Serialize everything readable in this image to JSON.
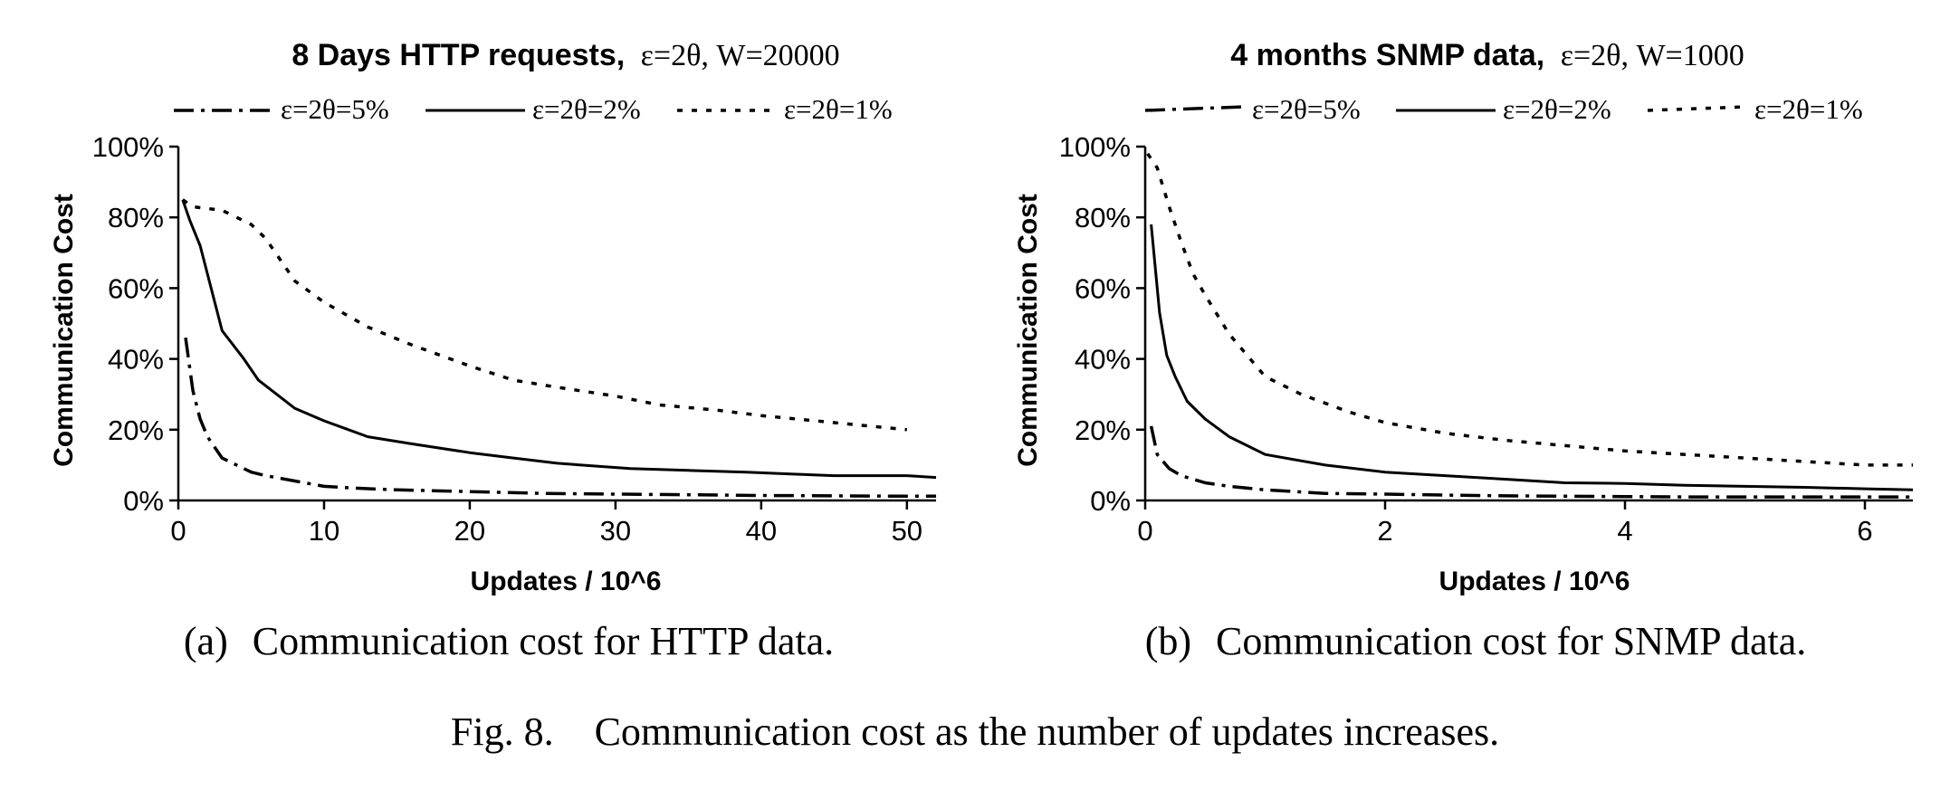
{
  "chart_data": [
    {
      "type": "line",
      "title": "8 Days HTTP requests,",
      "title_params": "ε=2θ, W=20000",
      "xlabel": "Updates / 10^6",
      "ylabel": "Communication Cost",
      "xlim": [
        0,
        52
      ],
      "ylim": [
        0,
        1
      ],
      "xticks": [
        0,
        10,
        20,
        30,
        40,
        50
      ],
      "xtick_labels": [
        "0",
        "10",
        "20",
        "30",
        "40",
        "50"
      ],
      "yticks": [
        0,
        0.2,
        0.4,
        0.6,
        0.8,
        1.0
      ],
      "ytick_labels": [
        "0%",
        "20%",
        "40%",
        "60%",
        "80%",
        "100%"
      ],
      "grid": false,
      "legend": "top",
      "series": [
        {
          "name": "ε=2θ=5%",
          "style": "dashdot",
          "x": [
            0.5,
            1,
            1.5,
            2,
            3,
            4,
            5,
            6,
            8,
            10,
            12,
            15,
            20,
            25,
            30,
            35,
            40,
            45,
            50,
            52
          ],
          "y": [
            0.46,
            0.31,
            0.23,
            0.18,
            0.12,
            0.1,
            0.08,
            0.07,
            0.055,
            0.04,
            0.035,
            0.03,
            0.025,
            0.02,
            0.018,
            0.016,
            0.014,
            0.013,
            0.012,
            0.012
          ]
        },
        {
          "name": "ε=2θ=2%",
          "style": "solid",
          "x": [
            0.3,
            0.8,
            1.5,
            3,
            4.5,
            5.5,
            8,
            10,
            13,
            16,
            20,
            23,
            26,
            31,
            35,
            39,
            42,
            45,
            50,
            52
          ],
          "y": [
            0.85,
            0.79,
            0.72,
            0.48,
            0.4,
            0.34,
            0.26,
            0.225,
            0.18,
            0.16,
            0.135,
            0.12,
            0.105,
            0.09,
            0.085,
            0.08,
            0.075,
            0.07,
            0.07,
            0.065
          ]
        },
        {
          "name": "ε=2θ=1%",
          "style": "dotted",
          "x": [
            0.3,
            1,
            3,
            5,
            6,
            8,
            10,
            13,
            16,
            20,
            23,
            26,
            30,
            33,
            37,
            40,
            45,
            50
          ],
          "y": [
            0.85,
            0.83,
            0.82,
            0.78,
            0.74,
            0.62,
            0.56,
            0.49,
            0.44,
            0.38,
            0.34,
            0.32,
            0.295,
            0.27,
            0.255,
            0.24,
            0.22,
            0.2
          ]
        }
      ]
    },
    {
      "type": "line",
      "title": "4 months SNMP data,",
      "title_params": "ε=2θ, W=1000",
      "xlabel": "Updates / 10^6",
      "ylabel": "Communication Cost",
      "xlim": [
        0,
        6.4
      ],
      "ylim": [
        0,
        1
      ],
      "xticks": [
        0,
        2,
        4,
        6
      ],
      "xtick_labels": [
        "0",
        "2",
        "4",
        "6"
      ],
      "yticks": [
        0,
        0.2,
        0.4,
        0.6,
        0.8,
        1.0
      ],
      "ytick_labels": [
        "0%",
        "20%",
        "40%",
        "60%",
        "80%",
        "100%"
      ],
      "grid": false,
      "legend": "top",
      "series": [
        {
          "name": "ε=2θ=5%",
          "style": "dashdot",
          "x": [
            0.05,
            0.1,
            0.2,
            0.3,
            0.5,
            0.7,
            1,
            1.5,
            2,
            2.5,
            3,
            3.5,
            4,
            4.5,
            5,
            5.5,
            6,
            6.4
          ],
          "y": [
            0.21,
            0.13,
            0.09,
            0.07,
            0.05,
            0.04,
            0.03,
            0.02,
            0.018,
            0.015,
            0.013,
            0.012,
            0.011,
            0.01,
            0.01,
            0.01,
            0.01,
            0.01
          ]
        },
        {
          "name": "ε=2θ=2%",
          "style": "solid",
          "x": [
            0.05,
            0.12,
            0.18,
            0.25,
            0.35,
            0.5,
            0.7,
            1,
            1.5,
            2,
            2.5,
            3,
            3.5,
            4,
            4.5,
            5,
            5.5,
            6,
            6.4
          ],
          "y": [
            0.78,
            0.53,
            0.41,
            0.35,
            0.28,
            0.23,
            0.18,
            0.13,
            0.1,
            0.08,
            0.07,
            0.06,
            0.05,
            0.048,
            0.043,
            0.04,
            0.037,
            0.033,
            0.03
          ]
        },
        {
          "name": "ε=2θ=1%",
          "style": "dotted",
          "x": [
            0.02,
            0.1,
            0.2,
            0.3,
            0.4,
            0.5,
            0.7,
            1,
            1.3,
            1.7,
            2,
            2.5,
            3,
            3.5,
            4,
            4.5,
            5,
            5.5,
            6,
            6.4
          ],
          "y": [
            0.98,
            0.94,
            0.83,
            0.73,
            0.64,
            0.58,
            0.47,
            0.35,
            0.3,
            0.25,
            0.22,
            0.19,
            0.17,
            0.155,
            0.14,
            0.13,
            0.12,
            0.11,
            0.1,
            0.1
          ]
        }
      ]
    }
  ],
  "subcaptions": [
    {
      "tag": "(a)",
      "text": "Communication cost for HTTP data."
    },
    {
      "tag": "(b)",
      "text": "Communication cost for SNMP data."
    }
  ],
  "figure_caption": {
    "label": "Fig. 8.",
    "text": "Communication cost as the number of updates increases."
  }
}
